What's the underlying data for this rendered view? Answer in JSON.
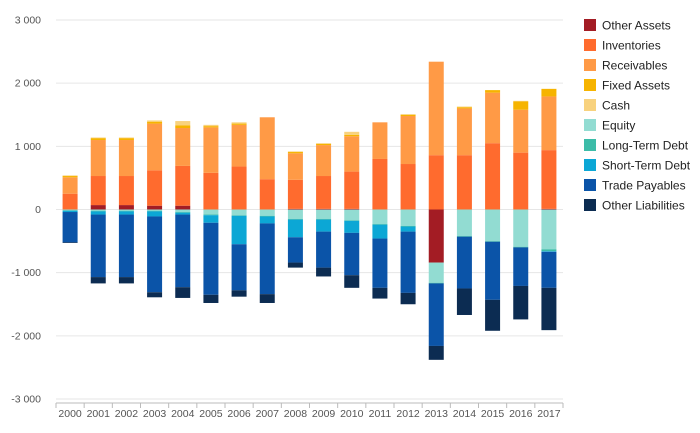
{
  "chart_data": {
    "type": "bar",
    "stacked": true,
    "title": "",
    "xlabel": "",
    "ylabel": "",
    "ylim": [
      -3000,
      3000
    ],
    "y_ticks": [
      -3000,
      -2000,
      -1000,
      0,
      1000,
      2000,
      3000
    ],
    "y_tick_labels": [
      "-3 000",
      "-2 000",
      "-1 000",
      "0",
      "1 000",
      "2 000",
      "3 000"
    ],
    "grid": true,
    "legend_position": "right",
    "categories": [
      "2000",
      "2001",
      "2002",
      "2003",
      "2004",
      "2005",
      "2006",
      "2007",
      "2008",
      "2009",
      "2010",
      "2011",
      "2012",
      "2013",
      "2014",
      "2015",
      "2016",
      "2017"
    ],
    "series": [
      {
        "name": "Other Assets",
        "color": "#a31c24",
        "values": [
          0,
          70,
          70,
          60,
          60,
          0,
          0,
          0,
          10,
          10,
          10,
          0,
          0,
          0,
          0,
          0,
          0,
          10
        ]
      },
      {
        "name": "Inventories",
        "color": "#ff6b2e",
        "values": [
          250,
          460,
          460,
          560,
          630,
          580,
          680,
          480,
          460,
          520,
          590,
          800,
          720,
          860,
          860,
          1050,
          900,
          930
        ]
      },
      {
        "name": "Receivables",
        "color": "#ff9a46",
        "values": [
          260,
          570,
          570,
          740,
          600,
          720,
          660,
          980,
          420,
          490,
          560,
          580,
          760,
          1480,
          740,
          800,
          680,
          850
        ]
      },
      {
        "name": "Fixed Assets",
        "color": "#f6b400",
        "values": [
          20,
          30,
          30,
          30,
          40,
          20,
          20,
          0,
          20,
          20,
          20,
          0,
          20,
          0,
          20,
          40,
          130,
          120
        ]
      },
      {
        "name": "Cash",
        "color": "#f8d27e",
        "values": [
          10,
          10,
          10,
          20,
          70,
          20,
          20,
          0,
          10,
          10,
          50,
          0,
          10,
          0,
          10,
          0,
          10,
          0
        ]
      },
      {
        "name": "Equity",
        "color": "#92dcd2",
        "values": [
          -10,
          -20,
          -20,
          -20,
          -40,
          -80,
          -90,
          -100,
          -150,
          -150,
          -170,
          -230,
          -260,
          -320,
          -420,
          -500,
          -590,
          -630
        ]
      },
      {
        "name": "Long-Term Debt",
        "color": "#3cbca8",
        "values": [
          -10,
          -10,
          -10,
          -10,
          -10,
          -10,
          -10,
          -10,
          -10,
          -10,
          -10,
          -10,
          -10,
          -10,
          -10,
          -10,
          -10,
          -30
        ]
      },
      {
        "name": "Short-Term Debt",
        "color": "#0ca7d5",
        "values": [
          -20,
          -50,
          -50,
          -80,
          -30,
          -120,
          -450,
          -110,
          -280,
          -190,
          -190,
          -220,
          -80,
          0,
          0,
          0,
          0,
          -10
        ]
      },
      {
        "name": "Trade Payables",
        "color": "#0b54a8",
        "values": [
          -480,
          -990,
          -990,
          -1200,
          -1150,
          -1140,
          -730,
          -1120,
          -400,
          -570,
          -670,
          -780,
          -970,
          -990,
          -820,
          -920,
          -610,
          -570
        ]
      },
      {
        "name": "Other Liabilities",
        "color": "#0c2c52",
        "values": [
          -10,
          -100,
          -100,
          -80,
          -170,
          -130,
          -100,
          -140,
          -80,
          -140,
          -200,
          -170,
          -180,
          -220,
          -420,
          -490,
          -530,
          -670
        ]
      },
      {
        "name": "Other Assets (negative)",
        "color": "#a31c24",
        "legend": false,
        "stack_order": 0,
        "values": [
          0,
          0,
          0,
          0,
          0,
          0,
          0,
          0,
          0,
          0,
          0,
          0,
          0,
          -840,
          0,
          0,
          0,
          0
        ]
      }
    ]
  }
}
